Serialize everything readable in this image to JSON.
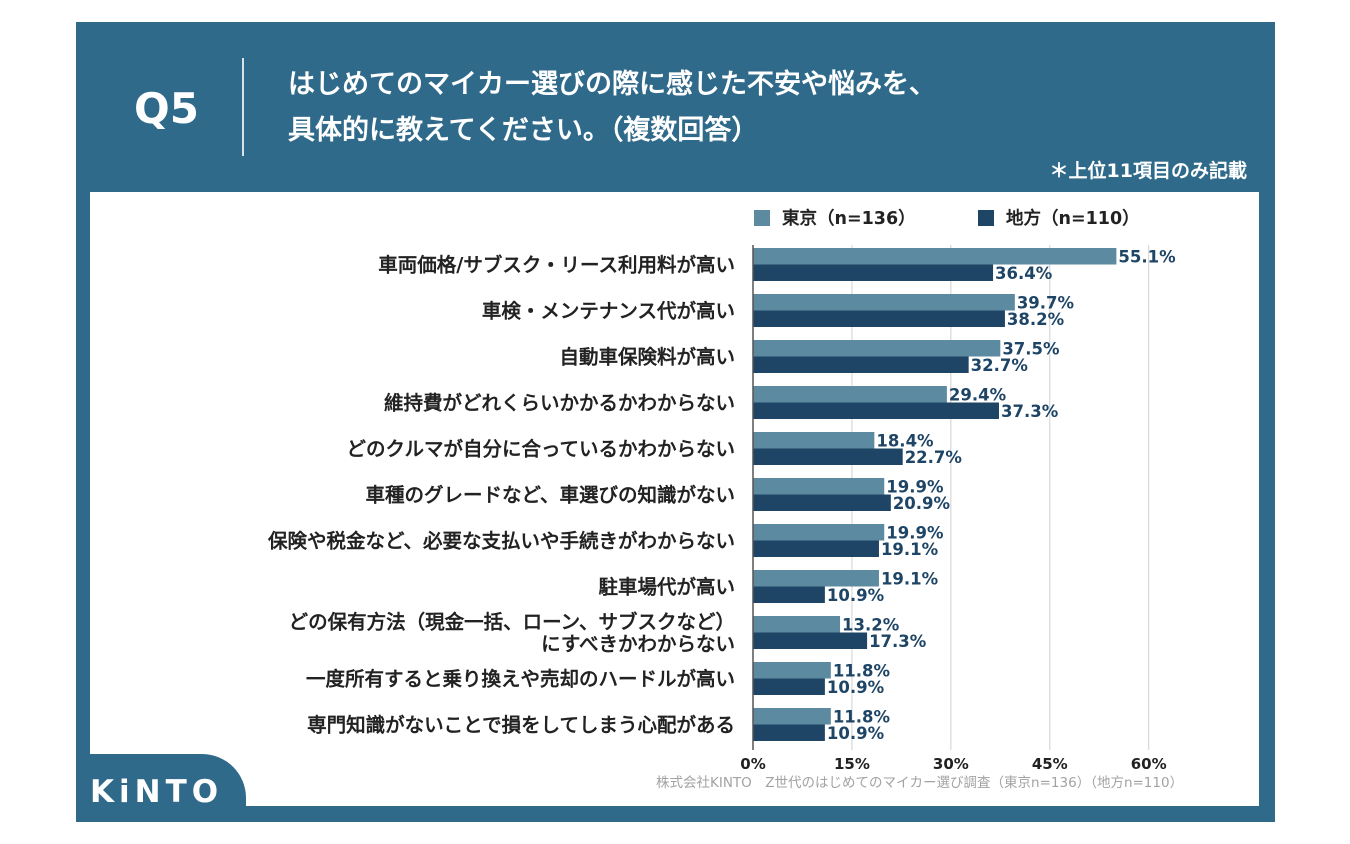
{
  "header": {
    "question_no": "Q5",
    "title_line1": "はじめてのマイカー選びの際に感じた不安や悩みを、",
    "title_line2": "具体的に教えてください。（複数回答）",
    "note": "＊上位11項目のみ記載"
  },
  "brand": {
    "logo": "KiNTO"
  },
  "source": "株式会社KINTO　Z世代のはじめてのマイカー選び調査（東京n=136）（地方n=110）",
  "colors": {
    "frame": "#2f6a8a",
    "tokyo": "#5c8aa0",
    "chiho": "#1e4565",
    "grid": "#d0d0d0",
    "axis": "#555555",
    "text": "#222222"
  },
  "chart_data": {
    "type": "bar",
    "orientation": "horizontal",
    "categories": [
      "車両価格/サブスク・リース利用料が高い",
      "車検・メンテナンス代が高い",
      "自動車保険料が高い",
      "維持費がどれくらいかかるかわからない",
      "どのクルマが自分に合っているかわからない",
      "車種のグレードなど、車選びの知識がない",
      "保険や税金など、必要な支払いや手続きがわからない",
      "駐車場代が高い",
      "どの保有方法（現金一括、ローン、サブスクなど）\nにすべきかわからない",
      "一度所有すると乗り換えや売却のハードルが高い",
      "専門知識がないことで損をしてしまう心配がある"
    ],
    "series": [
      {
        "name": "東京（n=136）",
        "color": "#5c8aa0",
        "values": [
          55.1,
          39.7,
          37.5,
          29.4,
          18.4,
          19.9,
          19.9,
          19.1,
          13.2,
          11.8,
          11.8
        ]
      },
      {
        "name": "地方（n=110）",
        "color": "#1e4565",
        "values": [
          36.4,
          38.2,
          32.7,
          37.3,
          22.7,
          20.9,
          19.1,
          10.9,
          17.3,
          10.9,
          10.9
        ]
      }
    ],
    "xlim": [
      0,
      60
    ],
    "xticks": [
      "0%",
      "15%",
      "30%",
      "45%",
      "60%"
    ],
    "xtick_values": [
      0,
      15,
      30,
      45,
      60
    ],
    "value_suffix": "%",
    "grid": true,
    "legend_position": "top"
  }
}
